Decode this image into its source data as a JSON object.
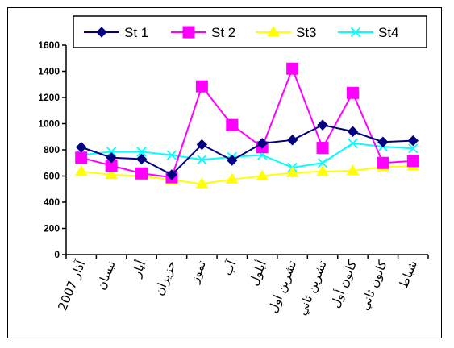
{
  "chart_data": {
    "type": "line",
    "title": "",
    "xlabel": "",
    "ylabel": "",
    "ylim": [
      0,
      1600
    ],
    "yticks": [
      0,
      200,
      400,
      600,
      800,
      1000,
      1200,
      1400,
      1600
    ],
    "grid": false,
    "legend_position": "top",
    "categories": [
      "آذار 2007",
      "نيسان",
      "أيار",
      "حزيران",
      "تموز",
      "آب",
      "أيلول",
      "تشرين اول",
      "تشرين ثاني",
      "كانون أول",
      "كانون ثاني",
      "شباط"
    ],
    "series": [
      {
        "name": "St 1",
        "color": "#000080",
        "marker": "diamond",
        "values": [
          820,
          740,
          730,
          610,
          840,
          720,
          850,
          875,
          990,
          940,
          860,
          870
        ]
      },
      {
        "name": "St 2",
        "color": "#ff00ff",
        "marker": "square",
        "values": [
          740,
          680,
          620,
          590,
          1285,
          990,
          820,
          1420,
          815,
          1235,
          700,
          715
        ]
      },
      {
        "name": "St3",
        "color": "#ffff00",
        "marker": "triangle",
        "values": [
          635,
          610,
          600,
          570,
          540,
          575,
          600,
          625,
          635,
          640,
          670,
          675
        ]
      },
      {
        "name": "St4",
        "color": "#00ffff",
        "marker": "x",
        "values": [
          760,
          785,
          785,
          760,
          725,
          745,
          760,
          665,
          700,
          850,
          825,
          810
        ]
      }
    ]
  }
}
